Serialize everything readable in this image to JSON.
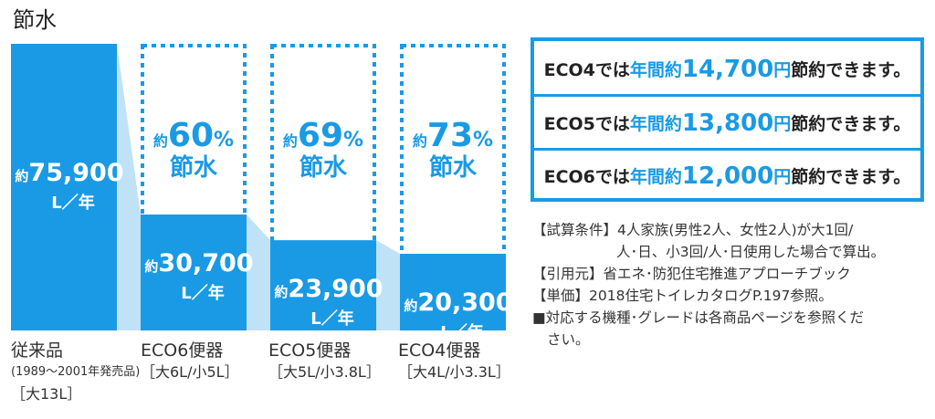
{
  "page_title": "節水",
  "chart_data": {
    "type": "bar",
    "title": "節水",
    "unit": "L／年",
    "approx_prefix": "約",
    "categories": [
      "従来品",
      "ECO6便器",
      "ECO5便器",
      "ECO4便器"
    ],
    "values": [
      75900,
      30700,
      23900,
      20300
    ],
    "value_labels": [
      "75,900",
      "30,700",
      "23,900",
      "20,300"
    ],
    "savings": [
      null,
      "60%",
      "69%",
      "73%"
    ],
    "savings_word": "節水",
    "ylim": [
      0,
      75900
    ],
    "colors": {
      "bar": "#1a9ae4",
      "dashed": "#1a9ae4",
      "connector": "#bfe2f7"
    }
  },
  "categories_meta": [
    {
      "name": "従来品",
      "sub": "(1989〜2001年発売品)",
      "spec": "［大13L］"
    },
    {
      "name": "ECO6便器",
      "sub": "",
      "spec": "［大6L/小5L］"
    },
    {
      "name": "ECO5便器",
      "sub": "",
      "spec": "［大5L/小3.8L］"
    },
    {
      "name": "ECO4便器",
      "sub": "",
      "spec": "［大4L/小3.3L］"
    }
  ],
  "eco_savings": [
    {
      "prefix": "ECO4では",
      "mid": "年間約",
      "amount": "14,700",
      "suffix_yen": "円",
      "tail": "節約できます。"
    },
    {
      "prefix": "ECO5では",
      "mid": "年間約",
      "amount": "13,800",
      "suffix_yen": "円",
      "tail": "節約できます。"
    },
    {
      "prefix": "ECO6では",
      "mid": "年間約",
      "amount": "12,000",
      "suffix_yen": "円",
      "tail": "節約できます。"
    }
  ],
  "notes": {
    "line1": "【試算条件】4人家族(男性2人、女性2人)が大1回/",
    "line2": "人･日、小3回/人･日使用した場合で算出。",
    "line3": "【引用元】省エネ･防犯住宅推進アプローチブック",
    "line4": "【単価】2018住宅トイレカタログP.197参照。",
    "line5": "■対応する機種･グレードは各商品ページを参照くだ",
    "line6": "さい。"
  }
}
